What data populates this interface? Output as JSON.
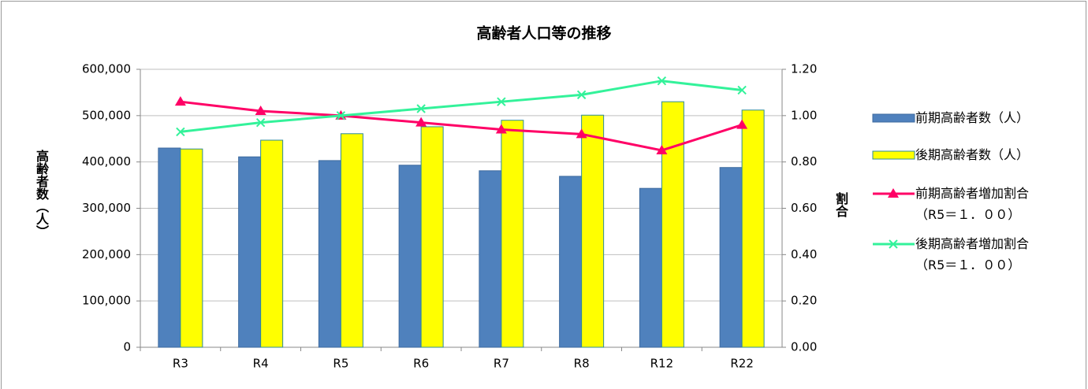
{
  "chart_data": {
    "type": "bar",
    "title": "高齢者人口等の推移",
    "y_label": "高齢者数（人）",
    "y2_label": "割合",
    "categories": [
      "R3",
      "R4",
      "R5",
      "R6",
      "R7",
      "R8",
      "R12",
      "R22"
    ],
    "series": [
      {
        "name": "前期高齢者数（人）",
        "type": "bar",
        "color": "#4f81bd",
        "values": [
          430000,
          411000,
          403000,
          393000,
          381000,
          369000,
          343000,
          388000
        ]
      },
      {
        "name": "後期高齢者数（人）",
        "type": "bar",
        "color": "#ffff00",
        "values": [
          428000,
          447000,
          461000,
          476000,
          490000,
          501000,
          530000,
          512000
        ]
      },
      {
        "name": "前期高齢者増加割合（R5＝１．００）",
        "type": "line",
        "axis": "y2",
        "marker": "triangle",
        "color": "#ff0066",
        "values": [
          1.06,
          1.02,
          1.0,
          0.97,
          0.94,
          0.92,
          0.85,
          0.96
        ]
      },
      {
        "name": "後期高齢者増加割合（R5＝１．００）",
        "type": "line",
        "axis": "y2",
        "marker": "x",
        "color": "#33f29a",
        "values": [
          0.93,
          0.97,
          1.0,
          1.03,
          1.06,
          1.09,
          1.15,
          1.11
        ]
      }
    ],
    "ylim": [
      0,
      600000
    ],
    "yticks": [
      0,
      {
        "value": 100000,
        "label": "100,000"
      },
      {
        "value": 200000,
        "label": "200,000"
      },
      {
        "value": 300000,
        "label": "300,000"
      },
      {
        "value": 400000,
        "label": "400,000"
      },
      {
        "value": 500000,
        "label": "500,000"
      },
      {
        "value": 600000,
        "label": "600,000"
      }
    ],
    "y2lim": [
      0,
      1.2
    ],
    "y2ticks": [
      {
        "value": 0,
        "label": "0.00"
      },
      {
        "value": 0.2,
        "label": "0.20"
      },
      {
        "value": 0.4,
        "label": "0.40"
      },
      {
        "value": 0.6,
        "label": "0.60"
      },
      {
        "value": 0.8,
        "label": "0.80"
      },
      {
        "value": 1.0,
        "label": "1.00"
      },
      {
        "value": 1.2,
        "label": "1.20"
      }
    ],
    "grid": true,
    "legend": "right"
  }
}
